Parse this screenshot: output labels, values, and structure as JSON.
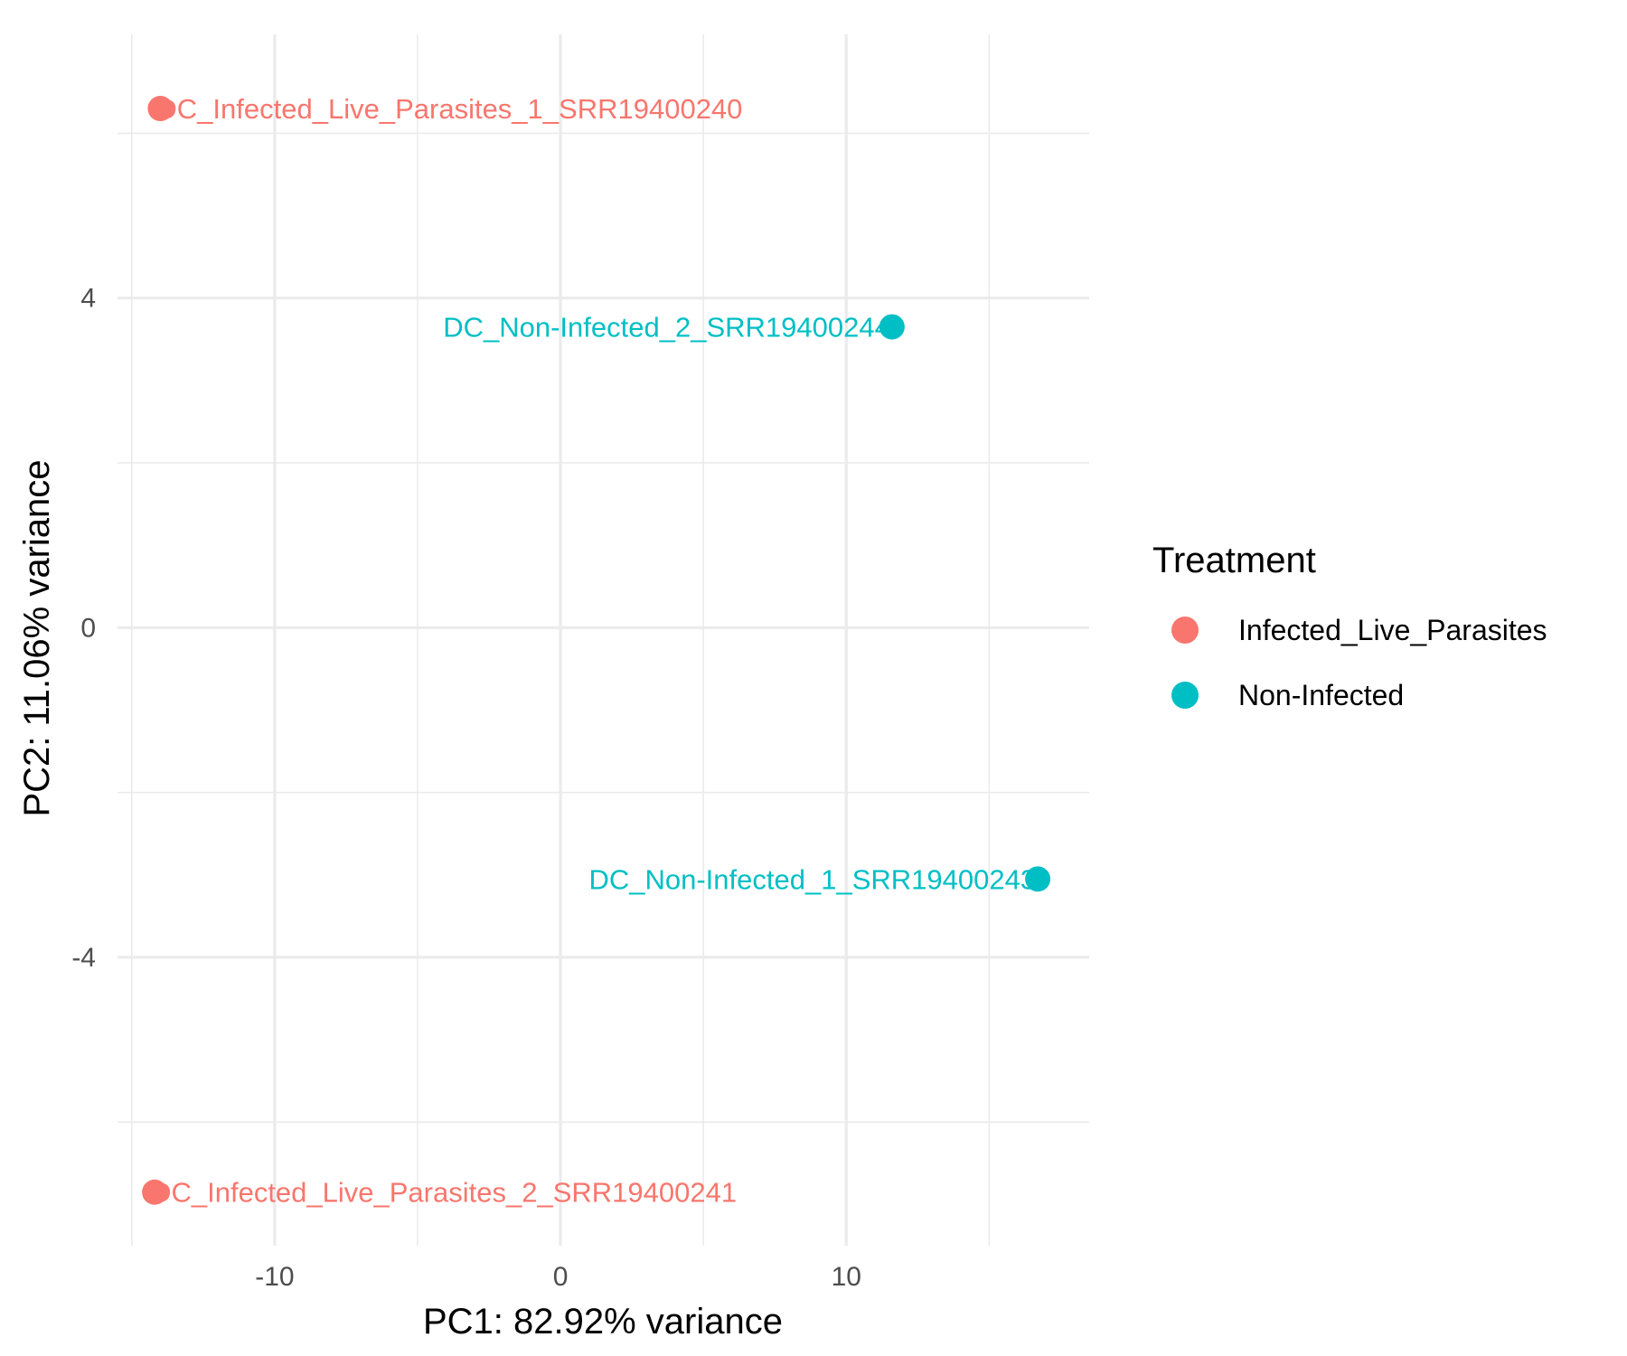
{
  "chart_data": {
    "type": "scatter",
    "title": "",
    "xlabel": "PC1: 82.92% variance",
    "ylabel": "PC2: 11.06% variance",
    "xlim": [
      -15.5,
      18.5
    ],
    "ylim": [
      -7.5,
      7.2
    ],
    "x_ticks": [
      -10,
      0,
      10
    ],
    "x_tick_labels": [
      "-10",
      "0",
      "10"
    ],
    "y_ticks": [
      -4,
      0,
      4
    ],
    "y_tick_labels": [
      "-4",
      "0",
      "4"
    ],
    "grid": true,
    "legend": {
      "title": "Treatment",
      "placement": "right",
      "entries": [
        {
          "name": "Infected_Live_Parasites",
          "color": "#F8766D"
        },
        {
          "name": "Non-Infected",
          "color": "#00BFC4"
        }
      ]
    },
    "series": [
      {
        "name": "Infected_Live_Parasites",
        "color": "#F8766D",
        "points": [
          {
            "label": "DC_Infected_Live_Parasites_1_SRR19400240",
            "x": -14.0,
            "y": 6.3
          },
          {
            "label": "DC_Infected_Live_Parasites_2_SRR19400241",
            "x": -14.2,
            "y": -6.85
          }
        ]
      },
      {
        "name": "Non-Infected",
        "color": "#00BFC4",
        "points": [
          {
            "label": "DC_Non-Infected_2_SRR19400244",
            "x": 11.6,
            "y": 3.65
          },
          {
            "label": "DC_Non-Infected_1_SRR19400243",
            "x": 16.7,
            "y": -3.05
          }
        ]
      }
    ]
  }
}
